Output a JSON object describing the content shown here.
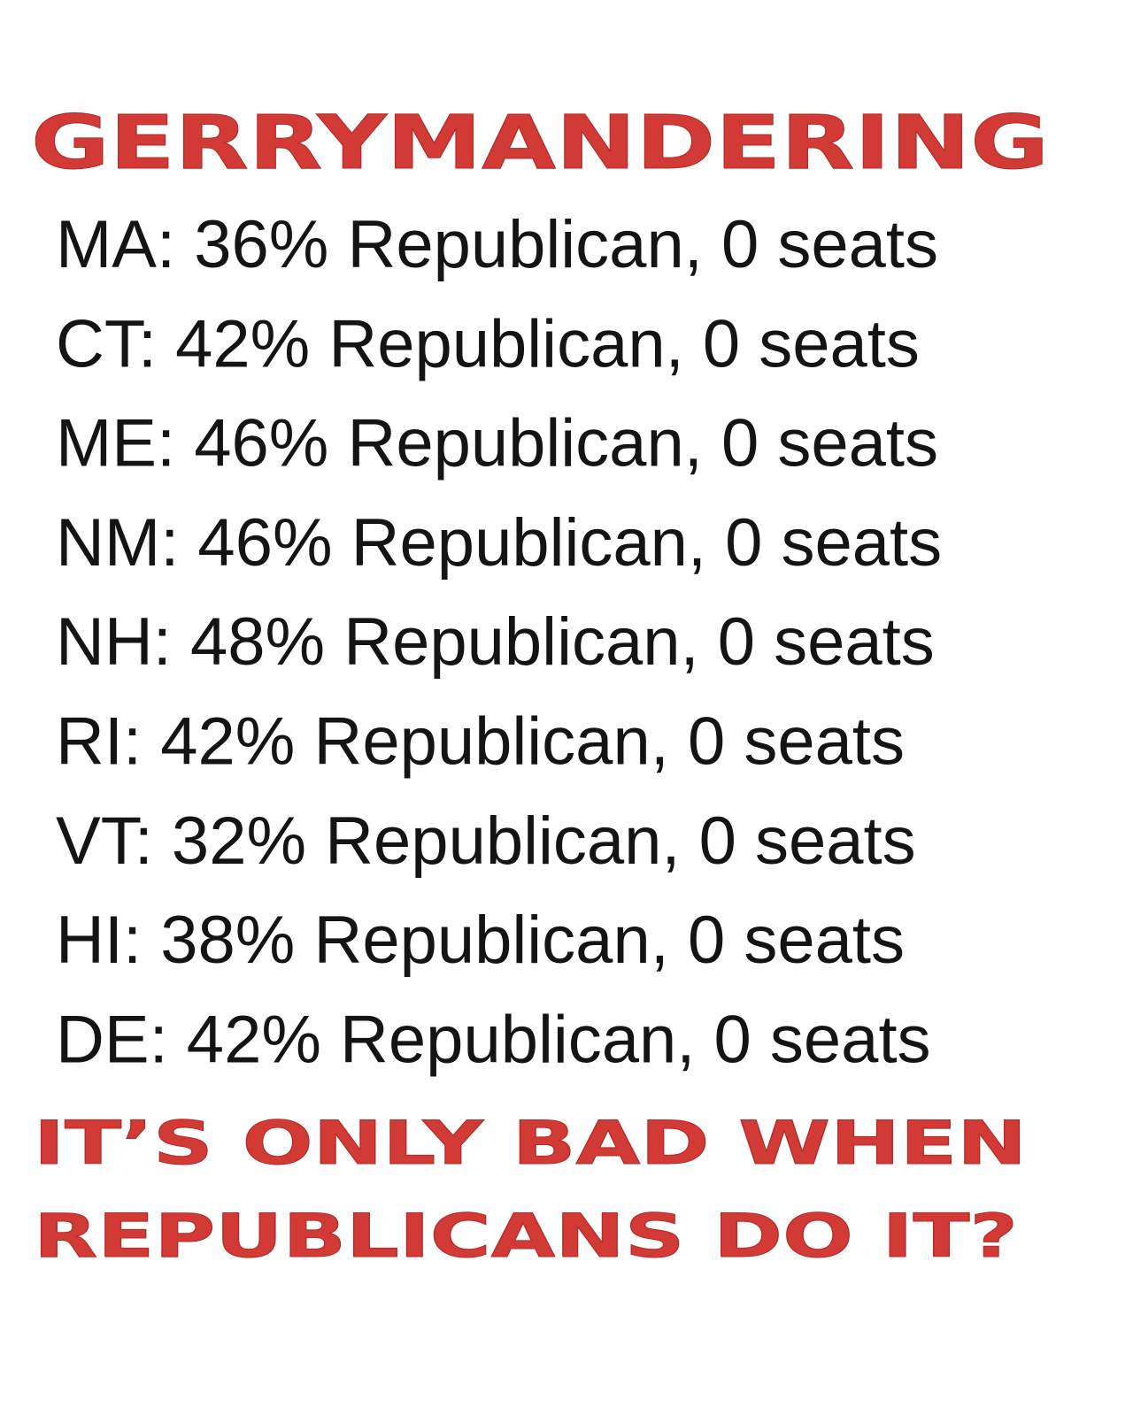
{
  "title": "GERRYMANDERING",
  "rows": [
    "MA: 36% Republican, 0 seats",
    "CT: 42% Republican, 0 seats",
    "ME: 46% Republican, 0 seats",
    "NM: 46% Republican, 0 seats",
    "NH: 48% Republican, 0 seats",
    "RI: 42% Republican, 0 seats",
    "VT: 32% Republican, 0 seats",
    "HI: 38% Republican, 0 seats",
    "DE: 42% Republican, 0 seats"
  ],
  "footer": [
    "IT’S ONLY BAD WHEN",
    "REPUBLICANS DO IT?"
  ]
}
